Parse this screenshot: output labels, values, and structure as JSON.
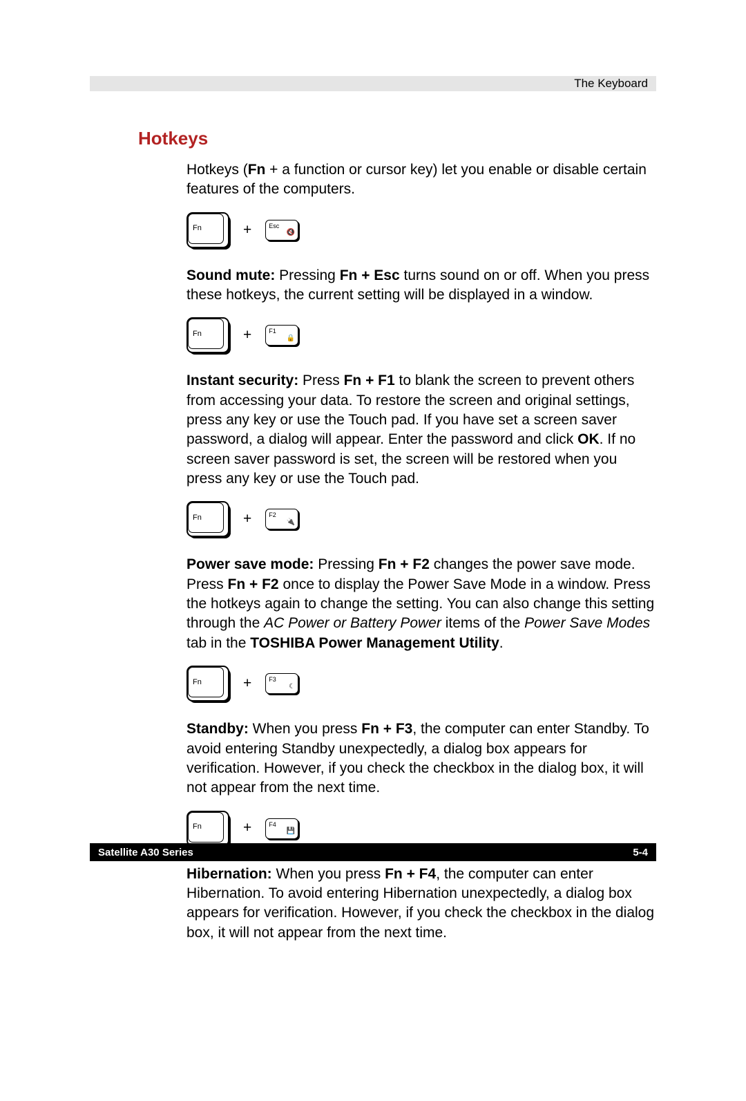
{
  "header": {
    "section": "The Keyboard"
  },
  "title": "Hotkeys",
  "intro": {
    "pre": "Hotkeys (",
    "bold": "Fn",
    "post": " + a function or cursor key) let you enable or disable certain features of the computers."
  },
  "keys": {
    "fn": "Fn",
    "plus": "+",
    "esc": "Esc",
    "f1": "F1",
    "f2": "F2",
    "f3": "F3",
    "f4": "F4"
  },
  "sound": {
    "label": "Sound mute:",
    "t1": " Pressing ",
    "combo": "Fn + Esc",
    "t2": " turns sound on or off. When you press these hotkeys, the current setting will be displayed in a window."
  },
  "security": {
    "label": "Instant security:",
    "t1": " Press ",
    "combo": "Fn + F1",
    "t2": " to blank the screen to prevent others from accessing your data. To restore the screen and original settings, press any key or use the Touch pad. If you have set a screen saver password, a dialog will appear. Enter the password and click ",
    "ok": "OK",
    "t3": ". If no screen saver password is set, the screen will be restored when you press any key or use the Touch pad."
  },
  "power": {
    "label": "Power save mode:",
    "t1": " Pressing ",
    "combo1": "Fn + F2",
    "t2": " changes the power save mode. Press ",
    "combo2": "Fn + F2",
    "t3": " once to display the Power Save Mode in a window. Press the hotkeys again to change the setting. You can also change this setting through the ",
    "italic": "AC Power or Battery Power",
    "t4": " items of the ",
    "italic2": "Power Save Modes",
    "t5": " tab in the ",
    "bold2": "TOSHIBA Power Management Utility",
    "t6": "."
  },
  "standby": {
    "label": "Standby:",
    "t1": " When you press ",
    "combo": "Fn + F3",
    "t2": ", the computer can enter Standby. To avoid entering Standby unexpectedly, a dialog box appears for verification. However, if you check the checkbox in the dialog box, it will not appear from the next time."
  },
  "hibernation": {
    "label": "Hibernation:",
    "t1": " When you press ",
    "combo": "Fn + F4",
    "t2": ", the computer can enter Hibernation. To avoid entering Hibernation unexpectedly, a dialog box appears for verification. However, if you check the checkbox in the dialog box, it will not appear from the next time."
  },
  "footer": {
    "left": "Satellite A30 Series",
    "right": "5-4"
  },
  "icons": {
    "mute": "🔇",
    "lock": "🔒",
    "plug": "🔌",
    "moon": "☾",
    "disk": "💾"
  }
}
